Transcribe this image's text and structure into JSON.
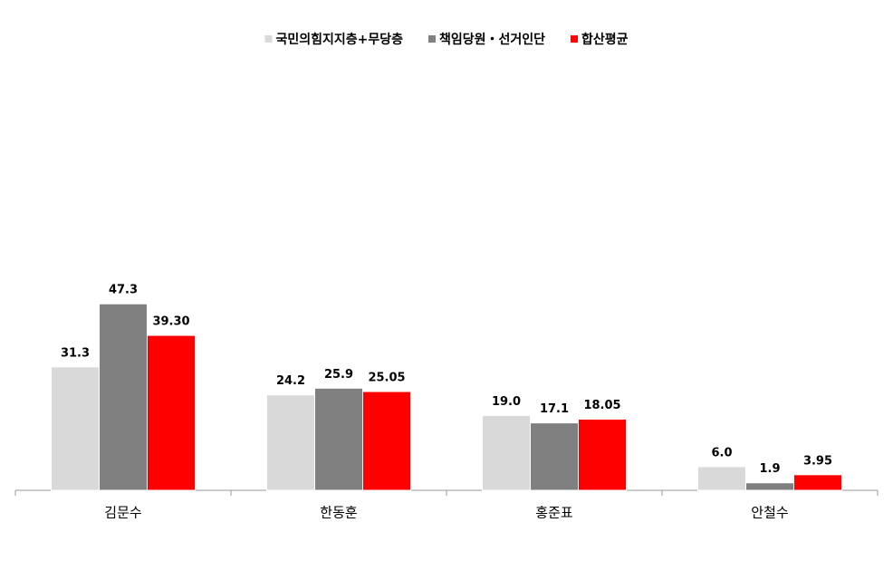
{
  "chart_data": {
    "type": "bar",
    "categories": [
      "김문수",
      "한동훈",
      "홍준표",
      "안철수"
    ],
    "series": [
      {
        "name": "국민의힘지지층+무당층",
        "color": "#d9d9d9",
        "values": [
          31.3,
          24.2,
          19.0,
          6.0
        ],
        "value_labels": [
          "31.3",
          "24.2",
          "19.0",
          "6.0"
        ]
      },
      {
        "name": "책임당원・선거인단",
        "color": "#808080",
        "values": [
          47.3,
          25.9,
          17.1,
          1.9
        ],
        "value_labels": [
          "47.3",
          "25.9",
          "17.1",
          "1.9"
        ]
      },
      {
        "name": "합산평균",
        "color": "#ff0000",
        "values": [
          39.3,
          25.05,
          18.05,
          3.95
        ],
        "value_labels": [
          "39.30",
          "25.05",
          "18.05",
          "3.95"
        ]
      }
    ],
    "ylim": [
      0,
      100
    ],
    "legend": "top"
  }
}
